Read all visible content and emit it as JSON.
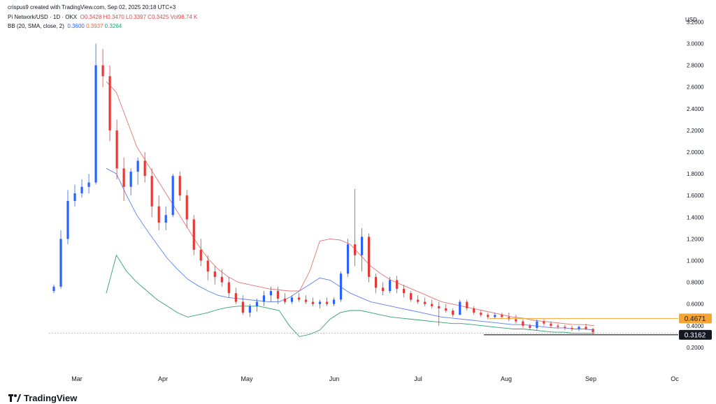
{
  "header": {
    "attribution": "crispus9 created with TradingView.com, Sep 02, 2025 20:18 UTC+3",
    "symbol_line": "Pi Network/USD · 1D · OKX",
    "ohlc": {
      "o": "O0.3428",
      "h": "H0.3470",
      "l": "L0.3397",
      "c": "C0.3425",
      "vol": "Vol98.74 K"
    },
    "bb_label": "BB (20, SMA, close, 2)",
    "bb_values": {
      "basis": "0.3600",
      "upper": "0.3937",
      "lower": "0.3264"
    },
    "currency": "USD"
  },
  "branding": {
    "logo_text": "TradingView"
  },
  "colors": {
    "up": "#2962ff",
    "down": "#e53935",
    "bb_upper": "#e57373",
    "bb_basis": "#5b7ff5",
    "bb_lower": "#33a06b",
    "marker_high": "#f4a534",
    "marker_low": "#131722"
  },
  "chart_data": {
    "type": "candlestick",
    "x_labels": [
      "Mar",
      "Apr",
      "May",
      "Jun",
      "Jul",
      "Aug",
      "Sep",
      "Oc"
    ],
    "y_ticks": [
      "0.2000",
      "0.4000",
      "0.6000",
      "0.8000",
      "1.0000",
      "1.2000",
      "1.4000",
      "1.6000",
      "1.8000",
      "2.0000",
      "2.2000",
      "2.4000",
      "2.6000",
      "2.8000",
      "3.0000",
      "3.2000"
    ],
    "y_range": [
      0.0,
      3.3
    ],
    "price_markers": [
      {
        "label": "0.4671",
        "value": 0.4671,
        "color": "#f4a534"
      },
      {
        "label": "0.3162",
        "value": 0.3162,
        "color": "#131722"
      }
    ],
    "candles": [
      [
        0.72,
        0.78,
        0.7,
        0.76
      ],
      [
        0.76,
        1.28,
        0.74,
        1.2
      ],
      [
        1.2,
        1.65,
        1.15,
        1.55
      ],
      [
        1.55,
        1.7,
        1.5,
        1.62
      ],
      [
        1.62,
        1.75,
        1.58,
        1.68
      ],
      [
        1.68,
        1.8,
        1.62,
        1.72
      ],
      [
        1.72,
        3.0,
        1.7,
        2.8
      ],
      [
        2.8,
        2.95,
        2.6,
        2.7
      ],
      [
        2.7,
        2.8,
        2.1,
        2.2
      ],
      [
        2.2,
        2.3,
        1.75,
        1.85
      ],
      [
        1.85,
        1.95,
        1.55,
        1.68
      ],
      [
        1.68,
        1.85,
        1.6,
        1.82
      ],
      [
        1.82,
        1.95,
        1.7,
        1.92
      ],
      [
        1.92,
        2.0,
        1.72,
        1.78
      ],
      [
        1.78,
        1.85,
        1.4,
        1.5
      ],
      [
        1.5,
        1.6,
        1.28,
        1.35
      ],
      [
        1.35,
        1.5,
        1.28,
        1.42
      ],
      [
        1.42,
        1.8,
        1.4,
        1.78
      ],
      [
        1.78,
        1.82,
        1.55,
        1.6
      ],
      [
        1.6,
        1.65,
        1.3,
        1.38
      ],
      [
        1.38,
        1.42,
        1.05,
        1.1
      ],
      [
        1.1,
        1.2,
        0.95,
        1.0
      ],
      [
        1.0,
        1.05,
        0.82,
        0.9
      ],
      [
        0.9,
        0.95,
        0.78,
        0.85
      ],
      [
        0.85,
        0.92,
        0.76,
        0.8
      ],
      [
        0.8,
        0.85,
        0.66,
        0.7
      ],
      [
        0.7,
        0.75,
        0.6,
        0.62
      ],
      [
        0.62,
        0.68,
        0.5,
        0.52
      ],
      [
        0.52,
        0.6,
        0.48,
        0.58
      ],
      [
        0.58,
        0.65,
        0.53,
        0.62
      ],
      [
        0.62,
        0.72,
        0.58,
        0.68
      ],
      [
        0.68,
        0.76,
        0.62,
        0.72
      ],
      [
        0.72,
        0.76,
        0.6,
        0.65
      ],
      [
        0.65,
        0.7,
        0.6,
        0.62
      ],
      [
        0.62,
        0.68,
        0.6,
        0.66
      ],
      [
        0.66,
        0.7,
        0.62,
        0.64
      ],
      [
        0.64,
        0.68,
        0.6,
        0.62
      ],
      [
        0.62,
        0.66,
        0.58,
        0.6
      ],
      [
        0.6,
        0.64,
        0.56,
        0.62
      ],
      [
        0.62,
        0.66,
        0.58,
        0.6
      ],
      [
        0.6,
        0.66,
        0.58,
        0.64
      ],
      [
        0.64,
        0.9,
        0.62,
        0.88
      ],
      [
        0.88,
        1.2,
        0.85,
        1.15
      ],
      [
        1.15,
        1.66,
        0.95,
        1.05
      ],
      [
        1.05,
        1.3,
        0.9,
        1.22
      ],
      [
        1.22,
        1.25,
        0.8,
        0.85
      ],
      [
        0.85,
        0.88,
        0.7,
        0.75
      ],
      [
        0.75,
        0.8,
        0.68,
        0.72
      ],
      [
        0.72,
        0.85,
        0.7,
        0.82
      ],
      [
        0.82,
        0.86,
        0.7,
        0.74
      ],
      [
        0.74,
        0.78,
        0.66,
        0.7
      ],
      [
        0.7,
        0.72,
        0.62,
        0.64
      ],
      [
        0.64,
        0.68,
        0.6,
        0.62
      ],
      [
        0.62,
        0.66,
        0.58,
        0.6
      ],
      [
        0.6,
        0.64,
        0.56,
        0.58
      ],
      [
        0.58,
        0.62,
        0.4,
        0.56
      ],
      [
        0.56,
        0.6,
        0.52,
        0.54
      ],
      [
        0.54,
        0.56,
        0.48,
        0.5
      ],
      [
        0.5,
        0.64,
        0.5,
        0.62
      ],
      [
        0.62,
        0.64,
        0.54,
        0.56
      ],
      [
        0.56,
        0.58,
        0.5,
        0.52
      ],
      [
        0.52,
        0.54,
        0.48,
        0.5
      ],
      [
        0.5,
        0.52,
        0.46,
        0.48
      ],
      [
        0.48,
        0.52,
        0.46,
        0.5
      ],
      [
        0.5,
        0.52,
        0.46,
        0.48
      ],
      [
        0.48,
        0.52,
        0.44,
        0.46
      ],
      [
        0.46,
        0.5,
        0.42,
        0.44
      ],
      [
        0.44,
        0.46,
        0.38,
        0.4
      ],
      [
        0.4,
        0.42,
        0.36,
        0.38
      ],
      [
        0.38,
        0.46,
        0.36,
        0.44
      ],
      [
        0.44,
        0.46,
        0.4,
        0.42
      ],
      [
        0.42,
        0.44,
        0.38,
        0.4
      ],
      [
        0.4,
        0.42,
        0.37,
        0.39
      ],
      [
        0.39,
        0.41,
        0.36,
        0.38
      ],
      [
        0.38,
        0.4,
        0.35,
        0.37
      ],
      [
        0.37,
        0.4,
        0.35,
        0.39
      ],
      [
        0.39,
        0.42,
        0.36,
        0.37
      ],
      [
        0.37,
        0.38,
        0.32,
        0.34
      ]
    ],
    "bb_upper": [
      2.65,
      2.55,
      2.3,
      2.05,
      1.9,
      1.75,
      1.6,
      1.45,
      1.3,
      1.15,
      1.02,
      0.92,
      0.85,
      0.8,
      0.78,
      0.76,
      0.74,
      0.73,
      0.72,
      0.72,
      0.9,
      1.18,
      1.2,
      1.19,
      1.15,
      1.05,
      0.95,
      0.88,
      0.82,
      0.78,
      0.74,
      0.7,
      0.66,
      0.62,
      0.6,
      0.58,
      0.56,
      0.54,
      0.52,
      0.5,
      0.48,
      0.47,
      0.45,
      0.44,
      0.43,
      0.42,
      0.41,
      0.41,
      0.4
    ],
    "bb_basis": [
      1.85,
      1.8,
      1.6,
      1.42,
      1.28,
      1.15,
      1.02,
      0.92,
      0.83,
      0.77,
      0.72,
      0.68,
      0.66,
      0.65,
      0.64,
      0.63,
      0.62,
      0.62,
      0.66,
      0.72,
      0.78,
      0.84,
      0.82,
      0.76,
      0.7,
      0.66,
      0.62,
      0.6,
      0.58,
      0.56,
      0.54,
      0.52,
      0.5,
      0.48,
      0.47,
      0.46,
      0.45,
      0.44,
      0.43,
      0.42,
      0.41,
      0.41,
      0.4,
      0.39,
      0.38,
      0.38,
      0.37,
      0.37,
      0.36
    ],
    "bb_lower": [
      0.7,
      1.05,
      0.9,
      0.8,
      0.72,
      0.64,
      0.58,
      0.52,
      0.48,
      0.5,
      0.52,
      0.55,
      0.57,
      0.58,
      0.58,
      0.58,
      0.56,
      0.54,
      0.4,
      0.3,
      0.32,
      0.36,
      0.46,
      0.52,
      0.54,
      0.54,
      0.52,
      0.5,
      0.48,
      0.47,
      0.46,
      0.45,
      0.44,
      0.43,
      0.42,
      0.42,
      0.41,
      0.4,
      0.39,
      0.38,
      0.37,
      0.37,
      0.36,
      0.35,
      0.34,
      0.34,
      0.33,
      0.33,
      0.33
    ]
  }
}
